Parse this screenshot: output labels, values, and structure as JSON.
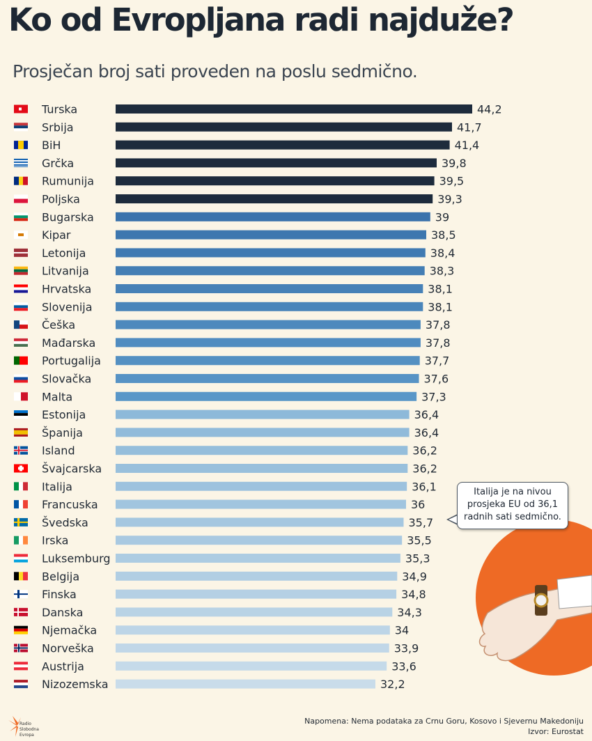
{
  "header": {
    "title": "Ko od Evropljana radi najduže?",
    "subtitle": "Prosječan broj sati proveden na poslu sedmično."
  },
  "chart_data": {
    "type": "bar",
    "orientation": "horizontal",
    "title": "Ko od Evropljana radi najduže?",
    "subtitle": "Prosječan broj sati proveden na poslu sedmično.",
    "xlabel": "",
    "ylabel": "",
    "categories": [
      "Turska",
      "Srbija",
      "BiH",
      "Grčka",
      "Rumunija",
      "Poljska",
      "Bugarska",
      "Kipar",
      "Letonija",
      "Litvanija",
      "Hrvatska",
      "Slovenija",
      "Češka",
      "Mađarska",
      "Portugalija",
      "Slovačka",
      "Malta",
      "Estonija",
      "Španija",
      "Island",
      "Švajcarska",
      "Italija",
      "Francuska",
      "Švedska",
      "Irska",
      "Luksemburg",
      "Belgija",
      "Finska",
      "Danska",
      "Njemačka",
      "Norveška",
      "Austrija",
      "Nizozemska"
    ],
    "values": [
      44.2,
      41.7,
      41.4,
      39.8,
      39.5,
      39.3,
      39,
      38.5,
      38.4,
      38.3,
      38.1,
      38.1,
      37.8,
      37.8,
      37.7,
      37.6,
      37.3,
      36.4,
      36.4,
      36.2,
      36.2,
      36.1,
      36,
      35.7,
      35.5,
      35.3,
      34.9,
      34.8,
      34.3,
      34,
      33.9,
      33.6,
      32.2
    ],
    "value_labels": [
      "44,2",
      "41,7",
      "41,4",
      "39,8",
      "39,5",
      "39,3",
      "39",
      "38,5",
      "38,4",
      "38,3",
      "38,1",
      "38,1",
      "37,8",
      "37,8",
      "37,7",
      "37,6",
      "37,3",
      "36,4",
      "36,4",
      "36,2",
      "36,2",
      "36,1",
      "36",
      "35,7",
      "35,5",
      "35,3",
      "34,9",
      "34,8",
      "34,3",
      "34",
      "33,9",
      "33,6",
      "32,2"
    ],
    "xlim": [
      0,
      44.2
    ],
    "grid": false,
    "annotation": "Italija je na nivou prosjeka EU od 36,1 radnih sati sedmično."
  },
  "colors": {
    "background": "#fbf5e6",
    "bar_dark": "#1d2b3c",
    "bar_mid": "#3f7bb1",
    "bar_light_start": "#8db9d9",
    "bar_light_end": "#c9dcea",
    "accent_orange": "#ee6a25"
  },
  "flags": [
    "flag-turkey-icon",
    "flag-serbia-icon",
    "flag-bih-icon",
    "flag-greece-icon",
    "flag-romania-icon",
    "flag-poland-icon",
    "flag-bulgaria-icon",
    "flag-cyprus-icon",
    "flag-latvia-icon",
    "flag-lithuania-icon",
    "flag-croatia-icon",
    "flag-slovenia-icon",
    "flag-czechia-icon",
    "flag-hungary-icon",
    "flag-portugal-icon",
    "flag-slovakia-icon",
    "flag-malta-icon",
    "flag-estonia-icon",
    "flag-spain-icon",
    "flag-iceland-icon",
    "flag-switzerland-icon",
    "flag-italy-icon",
    "flag-france-icon",
    "flag-sweden-icon",
    "flag-ireland-icon",
    "flag-luxembourg-icon",
    "flag-belgium-icon",
    "flag-finland-icon",
    "flag-denmark-icon",
    "flag-germany-icon",
    "flag-norway-icon",
    "flag-austria-icon",
    "flag-netherlands-icon"
  ],
  "callout": {
    "text": "Italija je na nivou prosjeka EU od 36,1 radnih sati sedmično."
  },
  "footer": {
    "note": "Napomena: Nema podataka za Crnu Goru, Kosovo i Sjevernu Makedoniju",
    "source": "Izvor: Eurostat",
    "logo_text": "Radio Slobodna Evropa"
  },
  "illustration": {
    "icon": "hand-with-watch-icon"
  }
}
